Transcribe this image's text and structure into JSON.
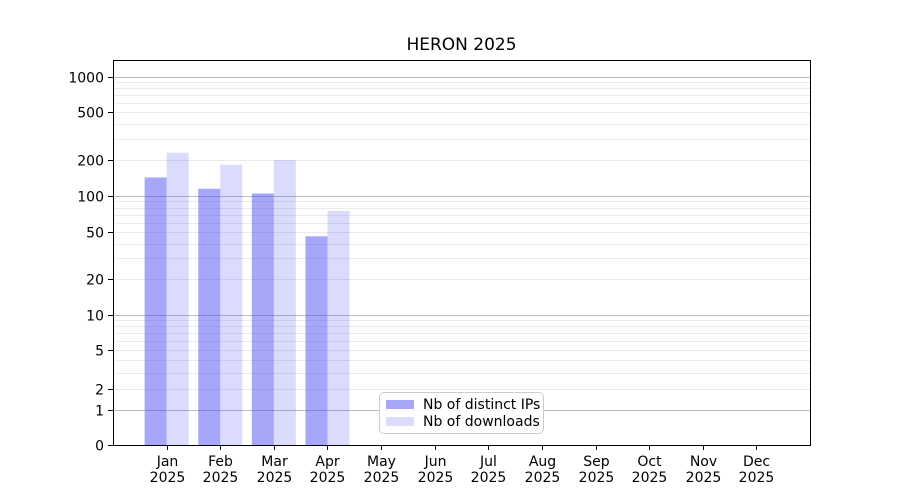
{
  "title": "HERON 2025",
  "chart_data": {
    "type": "bar",
    "title": "HERON 2025",
    "categories": [
      "Jan 2025",
      "Feb 2025",
      "Mar 2025",
      "Apr 2025",
      "May 2025",
      "Jun 2025",
      "Jul 2025",
      "Aug 2025",
      "Sep 2025",
      "Oct 2025",
      "Nov 2025",
      "Dec 2025"
    ],
    "series": [
      {
        "name": "Nb of distinct IPs",
        "color": "rgba(60,60,245,0.45)",
        "values": [
          143,
          115,
          105,
          46,
          0,
          0,
          0,
          0,
          0,
          0,
          0,
          0
        ]
      },
      {
        "name": "Nb of downloads",
        "color": "rgba(60,60,245,0.185)",
        "values": [
          230,
          183,
          200,
          75,
          0,
          0,
          0,
          0,
          0,
          0,
          0,
          0
        ]
      }
    ],
    "xlabel": "",
    "ylabel": "",
    "yscale": "symlog",
    "yticks": [
      0,
      1,
      2,
      5,
      10,
      20,
      50,
      100,
      200,
      500,
      1000
    ],
    "ylim": [
      0,
      1300
    ],
    "grid": true,
    "legend_position": "lower center"
  },
  "legend": {
    "items": [
      {
        "label": "Nb of distinct IPs"
      },
      {
        "label": "Nb of downloads"
      }
    ]
  },
  "colors": {
    "bar_distinct_ips": "rgba(60,60,245,0.45)",
    "bar_downloads": "rgba(60,60,245,0.185)",
    "grid_major": "#bdbdbd",
    "grid_minor": "#ebebeb",
    "axis": "#000000",
    "tick_label": "#000000",
    "legend_border": "#cccccc"
  }
}
